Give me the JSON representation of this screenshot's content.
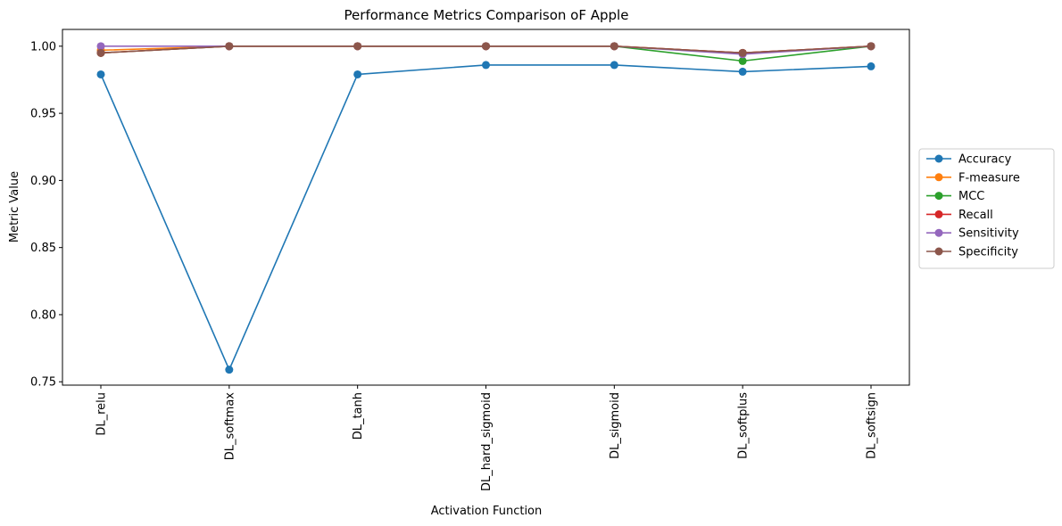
{
  "chart_data": {
    "type": "line",
    "title": "Performance Metrics Comparison oF Apple",
    "xlabel": "Activation Function",
    "ylabel": "Metric Value",
    "categories": [
      "DL_relu",
      "DL_softmax",
      "DL_tanh",
      "DL_hard_sigmoid",
      "DL_sigmoid",
      "DL_softplus",
      "DL_softsign"
    ],
    "ylim": [
      0.7475,
      1.0125
    ],
    "yticks": [
      0.75,
      0.8,
      0.85,
      0.9,
      0.95,
      1.0
    ],
    "ytick_labels": [
      "0.75",
      "0.80",
      "0.85",
      "0.90",
      "0.95",
      "1.00"
    ],
    "grid": false,
    "legend_position": "outside-right",
    "series": [
      {
        "name": "Accuracy",
        "color": "#1f77b4",
        "values": [
          0.979,
          0.759,
          0.979,
          0.986,
          0.986,
          0.981,
          0.985
        ]
      },
      {
        "name": "F-measure",
        "color": "#ff7f0e",
        "values": [
          0.997,
          1.0,
          1.0,
          1.0,
          1.0,
          0.995,
          1.0
        ]
      },
      {
        "name": "MCC",
        "color": "#2ca02c",
        "values": [
          0.995,
          1.0,
          1.0,
          1.0,
          1.0,
          0.989,
          1.0
        ]
      },
      {
        "name": "Recall",
        "color": "#d62728",
        "values": [
          0.995,
          1.0,
          1.0,
          1.0,
          1.0,
          0.995,
          1.0
        ]
      },
      {
        "name": "Sensitivity",
        "color": "#9467bd",
        "values": [
          1.0,
          1.0,
          1.0,
          1.0,
          1.0,
          0.994,
          1.0
        ]
      },
      {
        "name": "Specificity",
        "color": "#8c564b",
        "values": [
          0.995,
          1.0,
          1.0,
          1.0,
          1.0,
          0.995,
          1.0
        ]
      }
    ]
  }
}
